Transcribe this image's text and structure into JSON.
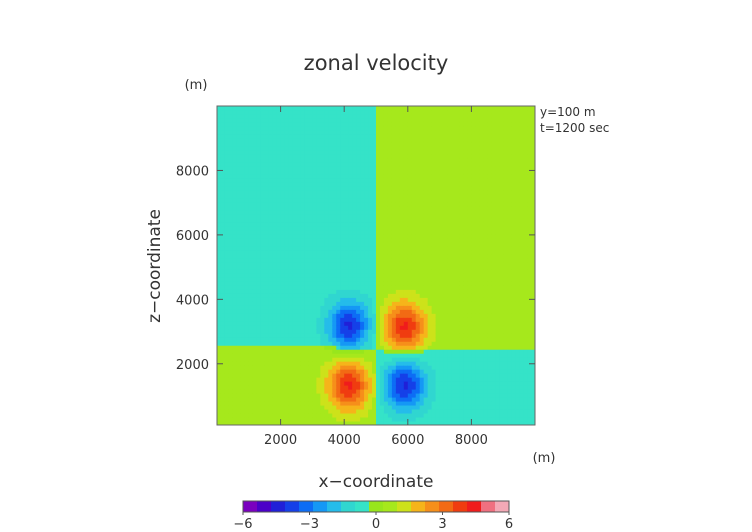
{
  "chart_data": {
    "type": "heatmap",
    "title": "zonal velocity",
    "xlabel": "x−coordinate",
    "ylabel": "z−coordinate",
    "x_unit": "(m)",
    "y_unit": "(m)",
    "xlim": [
      0,
      10000
    ],
    "ylim": [
      100,
      10000
    ],
    "x_ticks": [
      2000,
      4000,
      6000,
      8000
    ],
    "y_ticks": [
      2000,
      4000,
      6000,
      8000
    ],
    "annotations": [
      "y=100 m",
      "t=1200 sec"
    ],
    "colorbar": {
      "min": -6,
      "max": 6,
      "tick_labels": [
        "−6",
        "−3",
        "0",
        "3",
        "6"
      ],
      "tick_values": [
        -6,
        -3,
        0,
        3,
        6
      ],
      "colors": [
        "#7a00bf",
        "#4b00c8",
        "#2020d8",
        "#1540e8",
        "#0d6df5",
        "#1598f5",
        "#25bcea",
        "#30d6d0",
        "#35e3c8",
        "#98e61c",
        "#a6e81c",
        "#cde21a",
        "#f6b41a",
        "#f68f1a",
        "#f26a14",
        "#f03c10",
        "#f01c1c",
        "#f07080",
        "#f4a9b6"
      ]
    },
    "field": {
      "background_left": 0.6,
      "background_right": -0.6,
      "interface_height_left": 2550,
      "interface_height_right": 2450,
      "divider_x": 5000,
      "vortices": [
        {
          "x": 4150,
          "z": 3200,
          "peak": -3.6
        },
        {
          "x": 5900,
          "z": 3150,
          "peak": 3.6
        },
        {
          "x": 4150,
          "z": 1350,
          "peak": 3.6
        },
        {
          "x": 5900,
          "z": 1350,
          "peak": -3.6
        }
      ]
    }
  }
}
